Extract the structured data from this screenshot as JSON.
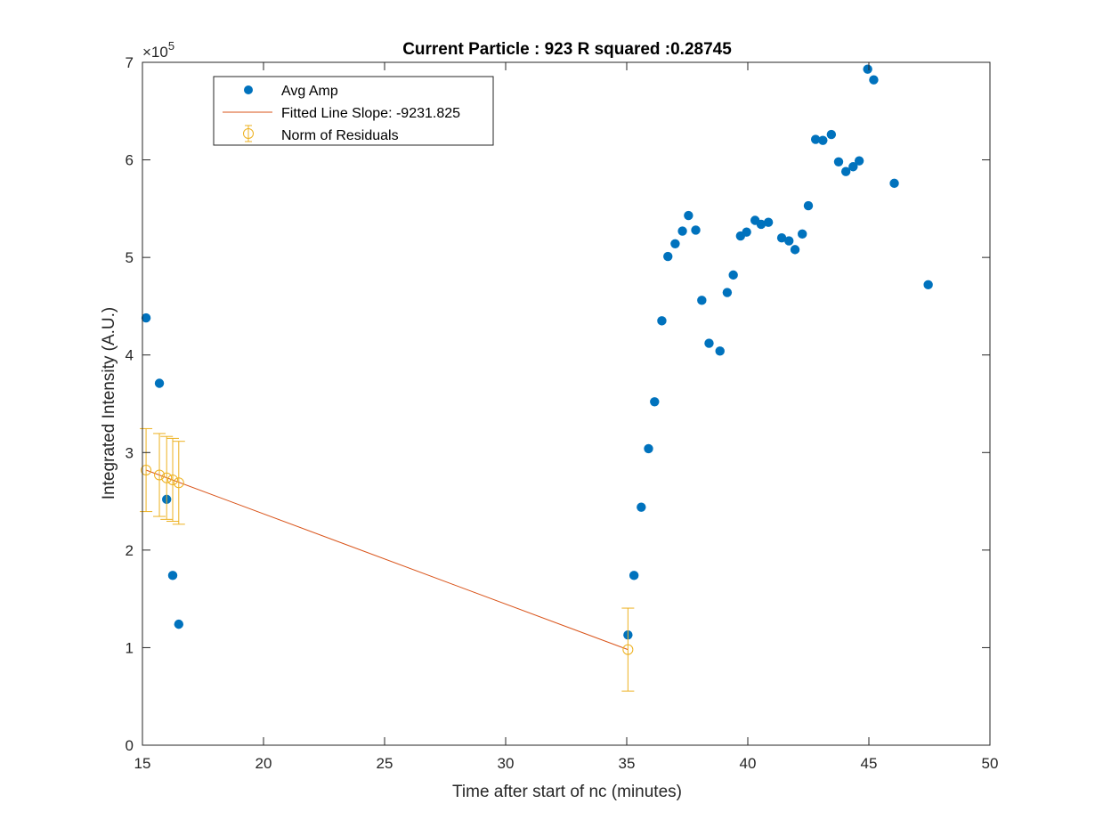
{
  "chart_data": {
    "type": "scatter",
    "title": "Current Particle : 923   R squared :0.28745",
    "xlabel": "Time after start of nc (minutes)",
    "ylabel": "Integrated Intensity (A.U.)",
    "xlim": [
      15,
      50
    ],
    "ylim": [
      0,
      700000
    ],
    "y_exponent_base": "×10",
    "y_exponent_power": "5",
    "xticks": [
      15,
      20,
      25,
      30,
      35,
      40,
      45,
      50
    ],
    "yticks": [
      0,
      100000,
      200000,
      300000,
      400000,
      500000,
      600000,
      700000
    ],
    "yticklabels": [
      "0",
      "1",
      "2",
      "3",
      "4",
      "5",
      "6",
      "7"
    ],
    "grid": false,
    "legend_position": "top-left",
    "colors": {
      "avg_amp": "#0072BD",
      "fit_line": "#D95319",
      "residuals": "#EDB120",
      "axes": "#262626"
    },
    "series": [
      {
        "name": "Avg Amp",
        "kind": "points",
        "x": [
          15.15,
          15.7,
          16.0,
          16.25,
          16.5,
          35.05,
          35.3,
          35.6,
          35.9,
          36.15,
          36.45,
          36.7,
          37.0,
          37.3,
          37.55,
          37.85,
          38.1,
          38.4,
          38.85,
          39.15,
          39.4,
          39.7,
          39.95,
          40.3,
          40.55,
          40.85,
          41.4,
          41.7,
          41.95,
          42.25,
          42.5,
          42.8,
          43.1,
          43.45,
          43.75,
          44.05,
          44.35,
          44.6,
          44.95,
          45.2,
          46.05,
          47.45
        ],
        "y": [
          438000,
          371000,
          252000,
          174000,
          124000,
          113000,
          174000,
          244000,
          304000,
          352000,
          435000,
          501000,
          514000,
          527000,
          543000,
          528000,
          456000,
          412000,
          404000,
          464000,
          482000,
          522000,
          526000,
          538000,
          534000,
          536000,
          520000,
          517000,
          508000,
          524000,
          553000,
          621000,
          620000,
          626000,
          598000,
          588000,
          593000,
          599000,
          693000,
          682000,
          576000,
          472000
        ]
      },
      {
        "name": "Fitted Line Slope: -9231.825",
        "kind": "line",
        "x": [
          15.15,
          35.05
        ],
        "y": [
          282000,
          98000
        ]
      },
      {
        "name": "Norm of Residuals",
        "kind": "errorbar",
        "x": [
          15.15,
          15.7,
          16.0,
          16.25,
          16.5,
          35.05
        ],
        "y": [
          282000,
          277000,
          274000,
          272000,
          269000,
          98000
        ],
        "err": [
          42500,
          42500,
          42500,
          42500,
          42500,
          42500
        ]
      }
    ]
  }
}
